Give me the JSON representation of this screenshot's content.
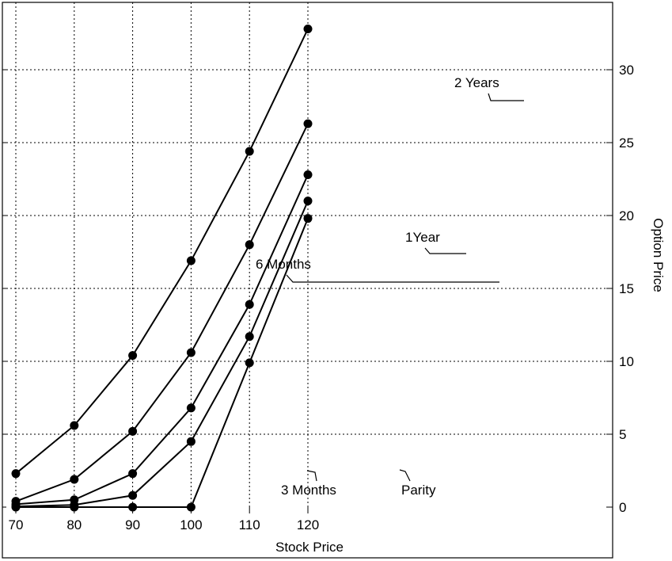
{
  "chart_data": {
    "type": "line",
    "title": "",
    "xlabel": "Stock Price",
    "ylabel": "Option Price",
    "xlim": [
      69,
      122.5
    ],
    "ylim": [
      0,
      33
    ],
    "xticks": [
      70,
      80,
      90,
      100,
      110,
      120
    ],
    "yticks": [
      0,
      5,
      10,
      15,
      20,
      25,
      30
    ],
    "grid": true,
    "legend": "none",
    "x": [
      70,
      80,
      90,
      100,
      110,
      120
    ],
    "series": [
      {
        "name": "2 Years",
        "values": [
          2.3,
          5.6,
          10.4,
          16.9,
          24.4,
          32.8
        ]
      },
      {
        "name": "1Year",
        "values": [
          0.4,
          1.9,
          5.2,
          10.6,
          18.0,
          26.3
        ]
      },
      {
        "name": "6 Months",
        "values": [
          0.2,
          0.5,
          2.3,
          6.8,
          13.9,
          22.8
        ]
      },
      {
        "name": "3 Months",
        "values": [
          0.05,
          0.15,
          0.8,
          4.5,
          11.7,
          21.0
        ]
      },
      {
        "name": "Parity",
        "values": [
          0,
          0,
          0,
          0,
          9.9,
          19.8
        ]
      }
    ],
    "annotations": [
      {
        "text": "2 Years",
        "series": "2 Years"
      },
      {
        "text": "1Year",
        "series": "1Year"
      },
      {
        "text": "6 Months",
        "series": "6 Months"
      },
      {
        "text": "3 Months",
        "series": "3 Months"
      },
      {
        "text": "Parity",
        "series": "Parity"
      }
    ]
  }
}
